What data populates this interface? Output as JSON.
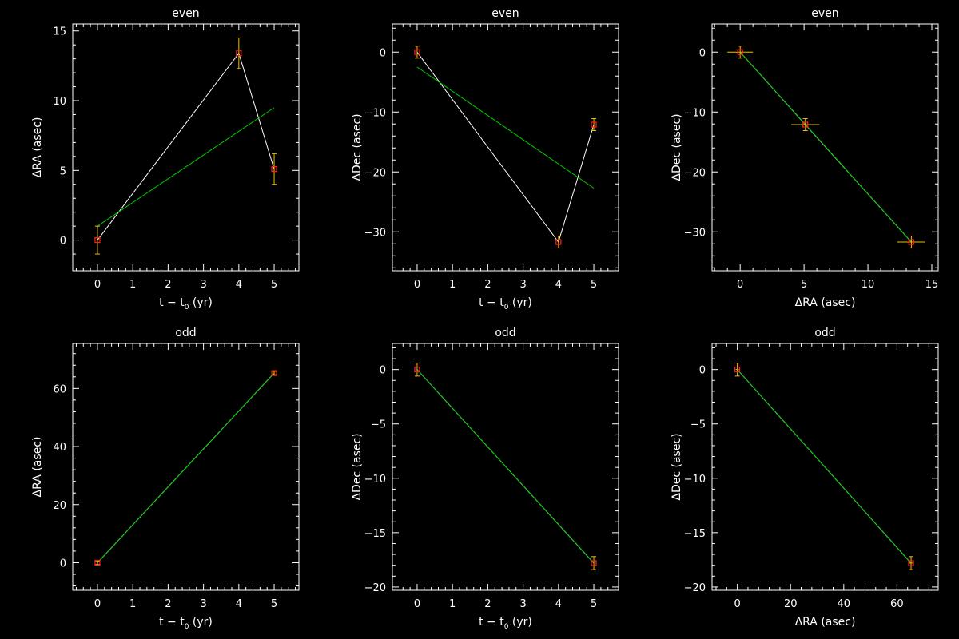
{
  "colors": {
    "background": "#000000",
    "axes": "#ffffff",
    "data_line": "#ffffff",
    "fit_line": "#00cc00",
    "marker": "#ff2020",
    "error_bar": "#e8c000"
  },
  "chart_data": [
    {
      "type": "scatter",
      "title": "even",
      "xlabel": "t − t",
      "xlabel_sub": "0",
      "xlabel_suffix": " (yr)",
      "ylabel": "ΔRA (asec)",
      "xlim": [
        -0.7,
        5.7
      ],
      "ylim": [
        -2.2,
        15.5
      ],
      "xticks": [
        0,
        1,
        2,
        3,
        4,
        5
      ],
      "xtick_labels": [
        "0",
        "1",
        "2",
        "3",
        "4",
        "5"
      ],
      "yticks": [
        0,
        5,
        10,
        15
      ],
      "ytick_labels": [
        "0",
        "5",
        "10",
        "15"
      ],
      "points": [
        {
          "x": 0,
          "y": 0,
          "xerr": 0,
          "yerr": 1.0
        },
        {
          "x": 4,
          "y": 13.4,
          "xerr": 0,
          "yerr": 1.1
        },
        {
          "x": 5,
          "y": 5.1,
          "xerr": 0,
          "yerr": 1.1
        }
      ],
      "connect": true,
      "fit": [
        [
          0,
          1.0
        ],
        [
          5,
          9.5
        ]
      ]
    },
    {
      "type": "scatter",
      "title": "even",
      "xlabel": "t − t",
      "xlabel_sub": "0",
      "xlabel_suffix": " (yr)",
      "ylabel": "ΔDec (asec)",
      "xlim": [
        -0.7,
        5.7
      ],
      "ylim": [
        -36.5,
        4.7
      ],
      "xticks": [
        0,
        1,
        2,
        3,
        4,
        5
      ],
      "xtick_labels": [
        "0",
        "1",
        "2",
        "3",
        "4",
        "5"
      ],
      "yticks": [
        -30,
        -20,
        -10,
        0
      ],
      "ytick_labels": [
        "−30",
        "−20",
        "−10",
        "0"
      ],
      "points": [
        {
          "x": 0,
          "y": 0,
          "xerr": 0,
          "yerr": 1.0
        },
        {
          "x": 4,
          "y": -31.7,
          "xerr": 0,
          "yerr": 1.0
        },
        {
          "x": 5,
          "y": -12.1,
          "xerr": 0,
          "yerr": 1.0
        }
      ],
      "connect": true,
      "fit": [
        [
          0,
          -2.5
        ],
        [
          5,
          -22.7
        ]
      ]
    },
    {
      "type": "scatter",
      "title": "even",
      "xlabel": "ΔRA (asec)",
      "xlabel_sub": "",
      "xlabel_suffix": "",
      "ylabel": "ΔDec (asec)",
      "xlim": [
        -2.2,
        15.5
      ],
      "ylim": [
        -36.5,
        4.7
      ],
      "xticks": [
        0,
        5,
        10,
        15
      ],
      "xtick_labels": [
        "0",
        "5",
        "10",
        "15"
      ],
      "yticks": [
        -30,
        -20,
        -10,
        0
      ],
      "ytick_labels": [
        "−30",
        "−20",
        "−10",
        "0"
      ],
      "points": [
        {
          "x": 0,
          "y": 0,
          "xerr": 1.0,
          "yerr": 1.0
        },
        {
          "x": 5.1,
          "y": -12.1,
          "xerr": 1.1,
          "yerr": 1.0
        },
        {
          "x": 13.4,
          "y": -31.7,
          "xerr": 1.1,
          "yerr": 1.0
        }
      ],
      "connect": true,
      "fit": [
        [
          0,
          0
        ],
        [
          13.4,
          -31.7
        ]
      ]
    },
    {
      "type": "scatter",
      "title": "odd",
      "xlabel": "t − t",
      "xlabel_sub": "0",
      "xlabel_suffix": " (yr)",
      "ylabel": "ΔRA (asec)",
      "xlim": [
        -0.7,
        5.7
      ],
      "ylim": [
        -9.5,
        75.5
      ],
      "xticks": [
        0,
        1,
        2,
        3,
        4,
        5
      ],
      "xtick_labels": [
        "0",
        "1",
        "2",
        "3",
        "4",
        "5"
      ],
      "yticks": [
        0,
        20,
        40,
        60
      ],
      "ytick_labels": [
        "0",
        "20",
        "40",
        "60"
      ],
      "points": [
        {
          "x": 0,
          "y": 0,
          "xerr": 0,
          "yerr": 0.6
        },
        {
          "x": 5,
          "y": 65.3,
          "xerr": 0,
          "yerr": 0.6
        }
      ],
      "connect": true,
      "fit": [
        [
          0,
          0
        ],
        [
          5,
          65.3
        ]
      ]
    },
    {
      "type": "scatter",
      "title": "odd",
      "xlabel": "t − t",
      "xlabel_sub": "0",
      "xlabel_suffix": " (yr)",
      "ylabel": "ΔDec (asec)",
      "xlim": [
        -0.7,
        5.7
      ],
      "ylim": [
        -20.3,
        2.4
      ],
      "xticks": [
        0,
        1,
        2,
        3,
        4,
        5
      ],
      "xtick_labels": [
        "0",
        "1",
        "2",
        "3",
        "4",
        "5"
      ],
      "yticks": [
        -20,
        -15,
        -10,
        -5,
        0
      ],
      "ytick_labels": [
        "−20",
        "−15",
        "−10",
        "−5",
        "0"
      ],
      "points": [
        {
          "x": 0,
          "y": 0,
          "xerr": 0,
          "yerr": 0.6
        },
        {
          "x": 5,
          "y": -17.8,
          "xerr": 0,
          "yerr": 0.6
        }
      ],
      "connect": true,
      "fit": [
        [
          0,
          0
        ],
        [
          5,
          -17.8
        ]
      ]
    },
    {
      "type": "scatter",
      "title": "odd",
      "xlabel": "ΔRA (asec)",
      "xlabel_sub": "",
      "xlabel_suffix": "",
      "ylabel": "ΔDec (asec)",
      "xlim": [
        -9.5,
        75.5
      ],
      "ylim": [
        -20.3,
        2.4
      ],
      "xticks": [
        0,
        20,
        40,
        60
      ],
      "xtick_labels": [
        "0",
        "20",
        "40",
        "60"
      ],
      "yticks": [
        -20,
        -15,
        -10,
        -5,
        0
      ],
      "ytick_labels": [
        "−20",
        "−15",
        "−10",
        "−5",
        "0"
      ],
      "points": [
        {
          "x": 0,
          "y": 0,
          "xerr": 0.6,
          "yerr": 0.6
        },
        {
          "x": 65.3,
          "y": -17.8,
          "xerr": 0.6,
          "yerr": 0.6
        }
      ],
      "connect": true,
      "fit": [
        [
          0,
          0
        ],
        [
          65.3,
          -17.8
        ]
      ]
    }
  ]
}
